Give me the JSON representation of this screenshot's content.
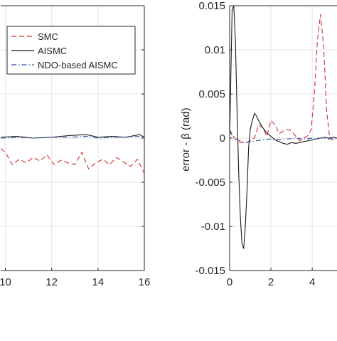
{
  "colors": {
    "smc": "#d62d2d",
    "aismc": "#1a1a1a",
    "ndo": "#3050b0",
    "grid": "#e6e6e6",
    "axis": "#262626"
  },
  "chart_data": [
    {
      "type": "line",
      "title": "",
      "xlabel": "",
      "ylabel": "",
      "xlim": [
        9.8,
        16
      ],
      "x_ticks": [
        10,
        12,
        14,
        16
      ],
      "x_tick_labels": [
        "10",
        "12",
        "14",
        "16"
      ],
      "grid": true,
      "legend": {
        "placement": "top-left",
        "entries": [
          "SMC",
          "AISMC",
          "NDO-based AISMC"
        ]
      },
      "series": [
        {
          "name": "SMC",
          "style": "dashed",
          "color": "#d62d2d",
          "x": [
            9.8,
            10.0,
            10.3,
            10.6,
            10.9,
            11.2,
            11.5,
            11.8,
            12.1,
            12.4,
            12.7,
            13.0,
            13.3,
            13.6,
            13.9,
            14.2,
            14.5,
            14.8,
            15.1,
            15.4,
            15.7,
            16.0
          ],
          "y": [
            -0.0012,
            -0.0016,
            -0.003,
            -0.0024,
            -0.0028,
            -0.0022,
            -0.0026,
            -0.0019,
            -0.003,
            -0.0025,
            -0.0028,
            -0.003,
            -0.0016,
            -0.0035,
            -0.0028,
            -0.0024,
            -0.003,
            -0.0022,
            -0.0027,
            -0.0032,
            -0.0024,
            -0.004
          ]
        },
        {
          "name": "AISMC",
          "style": "solid",
          "color": "#1a1a1a",
          "x": [
            9.8,
            10.5,
            11.2,
            12.0,
            12.8,
            13.5,
            14.0,
            14.6,
            15.2,
            15.8,
            16.0
          ],
          "y": [
            0.0001,
            0.0002,
            0.0,
            0.0001,
            0.0003,
            0.0004,
            0.0001,
            0.0002,
            0.0001,
            0.0004,
            0.0001
          ]
        },
        {
          "name": "NDO-based AISMC",
          "style": "dashdot",
          "color": "#3050b0",
          "x": [
            9.8,
            10.5,
            11.2,
            12.0,
            12.8,
            13.5,
            14.0,
            14.6,
            15.2,
            15.8,
            16.0
          ],
          "y": [
            0.0,
            0.0001,
            0.0,
            0.0001,
            0.0001,
            0.0002,
            0.0,
            0.0001,
            0.0001,
            0.0002,
            0.0001
          ]
        }
      ]
    },
    {
      "type": "line",
      "title": "",
      "xlabel": "",
      "ylabel": "error - β (rad)",
      "xlim": [
        0,
        5.2
      ],
      "ylim": [
        -0.015,
        0.015
      ],
      "x_ticks": [
        0,
        2,
        4
      ],
      "x_tick_labels": [
        "0",
        "2",
        "4"
      ],
      "y_ticks": [
        0.015,
        0.01,
        0.005,
        0,
        -0.005,
        -0.01,
        -0.015
      ],
      "y_tick_labels": [
        "0.015",
        "0.01",
        "0.005",
        "0",
        "-0.005",
        "-0.01",
        "-0.015"
      ],
      "grid": true,
      "series": [
        {
          "name": "SMC",
          "style": "dashed",
          "color": "#d62d2d",
          "x": [
            0,
            0.1,
            0.3,
            0.5,
            0.8,
            1.0,
            1.2,
            1.4,
            1.6,
            1.8,
            2.0,
            2.2,
            2.4,
            2.6,
            2.8,
            3.0,
            3.2,
            3.4,
            3.6,
            3.8,
            3.95,
            4.1,
            4.25,
            4.4,
            4.55,
            4.7,
            4.85,
            5.0,
            5.2
          ],
          "y": [
            0.001,
            0.0005,
            -0.0002,
            -0.0005,
            -0.0005,
            -0.0003,
            0.0,
            0.0015,
            0.0012,
            0.0002,
            0.002,
            0.0015,
            0.0005,
            0.0008,
            0.001,
            0.0008,
            0.0002,
            -0.0003,
            0.0,
            0.0003,
            0.001,
            0.005,
            0.011,
            0.014,
            0.0105,
            0.003,
            0.0,
            -0.0002,
            0.0
          ]
        },
        {
          "name": "AISMC",
          "style": "solid",
          "color": "#1a1a1a",
          "x": [
            0,
            0.05,
            0.12,
            0.2,
            0.28,
            0.36,
            0.44,
            0.52,
            0.6,
            0.68,
            0.76,
            0.84,
            0.92,
            1.0,
            1.1,
            1.2,
            1.3,
            1.4,
            1.5,
            1.6,
            1.8,
            2.0,
            2.2,
            2.4,
            2.6,
            2.8,
            3.0,
            3.2,
            3.4,
            3.6,
            3.8,
            4.0,
            4.2,
            4.4,
            4.6,
            4.8,
            5.0,
            5.2
          ],
          "y": [
            0.0,
            0.006,
            0.0145,
            0.015,
            0.011,
            0.003,
            -0.004,
            -0.009,
            -0.012,
            -0.0125,
            -0.01,
            -0.006,
            -0.001,
            0.001,
            0.002,
            0.0028,
            0.0025,
            0.002,
            0.0016,
            0.0012,
            0.0006,
            0.0002,
            -0.0002,
            -0.0004,
            -0.0006,
            -0.0007,
            -0.0005,
            -0.0006,
            -0.0005,
            -0.0004,
            -0.0003,
            -0.0002,
            -0.0001,
            0.0,
            0.0001,
            0.0,
            0.0001,
            0.0
          ]
        },
        {
          "name": "NDO-based AISMC",
          "style": "dashdot",
          "color": "#3050b0",
          "x": [
            0,
            0.1,
            0.2,
            0.4,
            0.6,
            0.8,
            1.0,
            1.3,
            1.6,
            2.0,
            2.4,
            2.8,
            3.2,
            3.6,
            4.0,
            4.4,
            4.8,
            5.2
          ],
          "y": [
            0.0008,
            0.0004,
            0.0001,
            -0.0002,
            -0.0004,
            -0.0005,
            -0.0004,
            -0.0003,
            -0.0002,
            -0.0001,
            -0.0002,
            -0.0001,
            0.0,
            -0.0001,
            0.0,
            0.0,
            -0.0001,
            0.0
          ]
        }
      ]
    }
  ]
}
